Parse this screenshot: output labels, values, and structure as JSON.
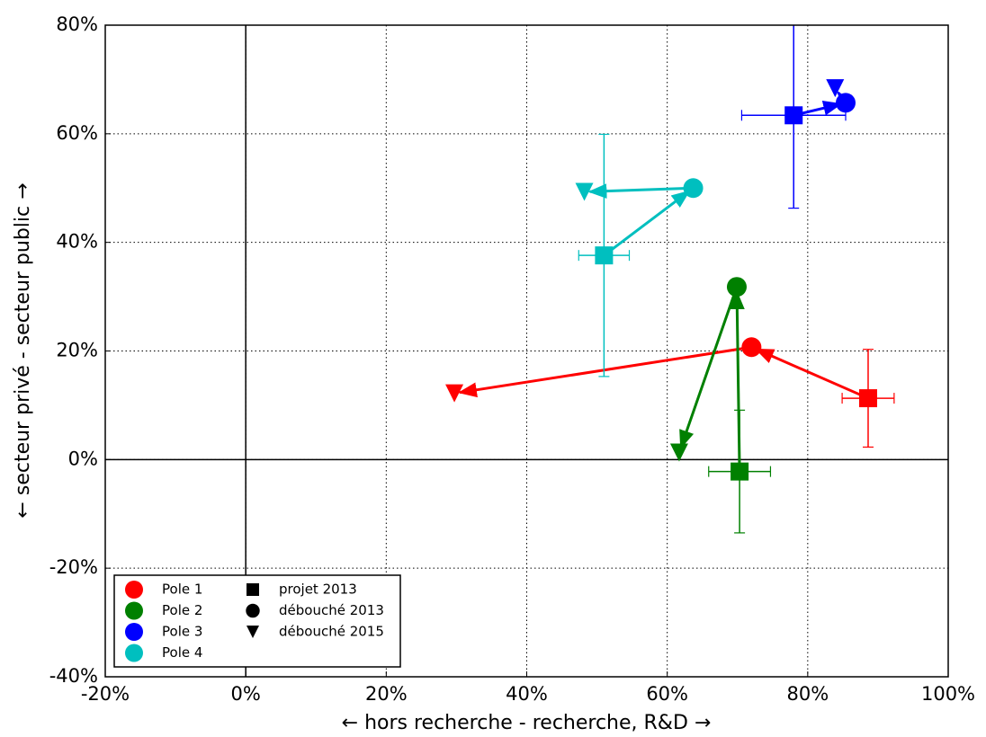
{
  "chart_data": {
    "type": "scatter",
    "xlabel": "← hors recherche   -   recherche, R&D →",
    "ylabel": "← secteur privé   -   secteur public →",
    "xlim": [
      -20,
      100
    ],
    "ylim": [
      -40,
      80
    ],
    "xticks": [
      {
        "value": -20,
        "label": "-20%"
      },
      {
        "value": 0,
        "label": "0%"
      },
      {
        "value": 20,
        "label": "20%"
      },
      {
        "value": 40,
        "label": "40%"
      },
      {
        "value": 60,
        "label": "60%"
      },
      {
        "value": 80,
        "label": "80%"
      },
      {
        "value": 100,
        "label": "100%"
      }
    ],
    "yticks": [
      {
        "value": -40,
        "label": "-40%"
      },
      {
        "value": -20,
        "label": "-20%"
      },
      {
        "value": 0,
        "label": "0%"
      },
      {
        "value": 20,
        "label": "20%"
      },
      {
        "value": 40,
        "label": "40%"
      },
      {
        "value": 60,
        "label": "60%"
      },
      {
        "value": 80,
        "label": "80%"
      }
    ],
    "grid": true,
    "legend": "lower left",
    "markers": [
      "projet 2013",
      "débouché 2013",
      "débouché 2015"
    ],
    "series": [
      {
        "name": "Pole 1",
        "color": "#ff0000",
        "x": [
          88.6,
          72.0,
          29.7
        ],
        "y": [
          11.3,
          20.7,
          12.2
        ],
        "xerr": 3.7,
        "yerr": 9
      },
      {
        "name": "Pole 2",
        "color": "#008000",
        "x": [
          70.3,
          69.9,
          61.7
        ],
        "y": [
          -2.2,
          31.8,
          1.3
        ],
        "xerr": 4.4,
        "yerr": 11.3
      },
      {
        "name": "Pole 3",
        "color": "#0000ff",
        "x": [
          78.0,
          85.4,
          83.9
        ],
        "y": [
          63.4,
          65.7,
          68.4
        ],
        "xerr": 7.4,
        "yerr": 17.1
      },
      {
        "name": "Pole 4",
        "color": "#00bfbf",
        "x": [
          51.0,
          63.7,
          48.2
        ],
        "y": [
          37.6,
          50.0,
          49.3
        ],
        "xerr": 3.6,
        "yerr": 22.3
      }
    ]
  }
}
